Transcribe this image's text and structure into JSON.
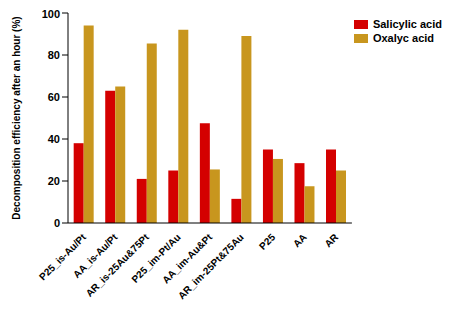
{
  "chart_data": {
    "type": "bar",
    "y_label": "Decomposition efficiency  after an hour (%)",
    "categories": [
      "P25_is-Au/Pt",
      "AA_is-Au/Pt",
      "AR_is-25Au&75Pt",
      "P25_im-Pt/Au",
      "AA_im-Au&Pt",
      "AR_im-25Pt&75Au",
      "P25",
      "AA",
      "AR"
    ],
    "series": [
      {
        "name": "Salicylic acid",
        "color": "#d40000",
        "values": [
          38,
          63,
          21,
          25,
          47.5,
          11.5,
          35,
          28.5,
          35
        ]
      },
      {
        "name": "Oxalyc acid",
        "color": "#c8961e",
        "values": [
          94,
          65,
          85.5,
          92,
          25.5,
          89,
          30.5,
          17.5,
          25
        ]
      }
    ],
    "ylim": [
      0,
      100
    ],
    "yticks": [
      0,
      20,
      40,
      60,
      80,
      100
    ],
    "grid": false,
    "legend": "top-right"
  }
}
